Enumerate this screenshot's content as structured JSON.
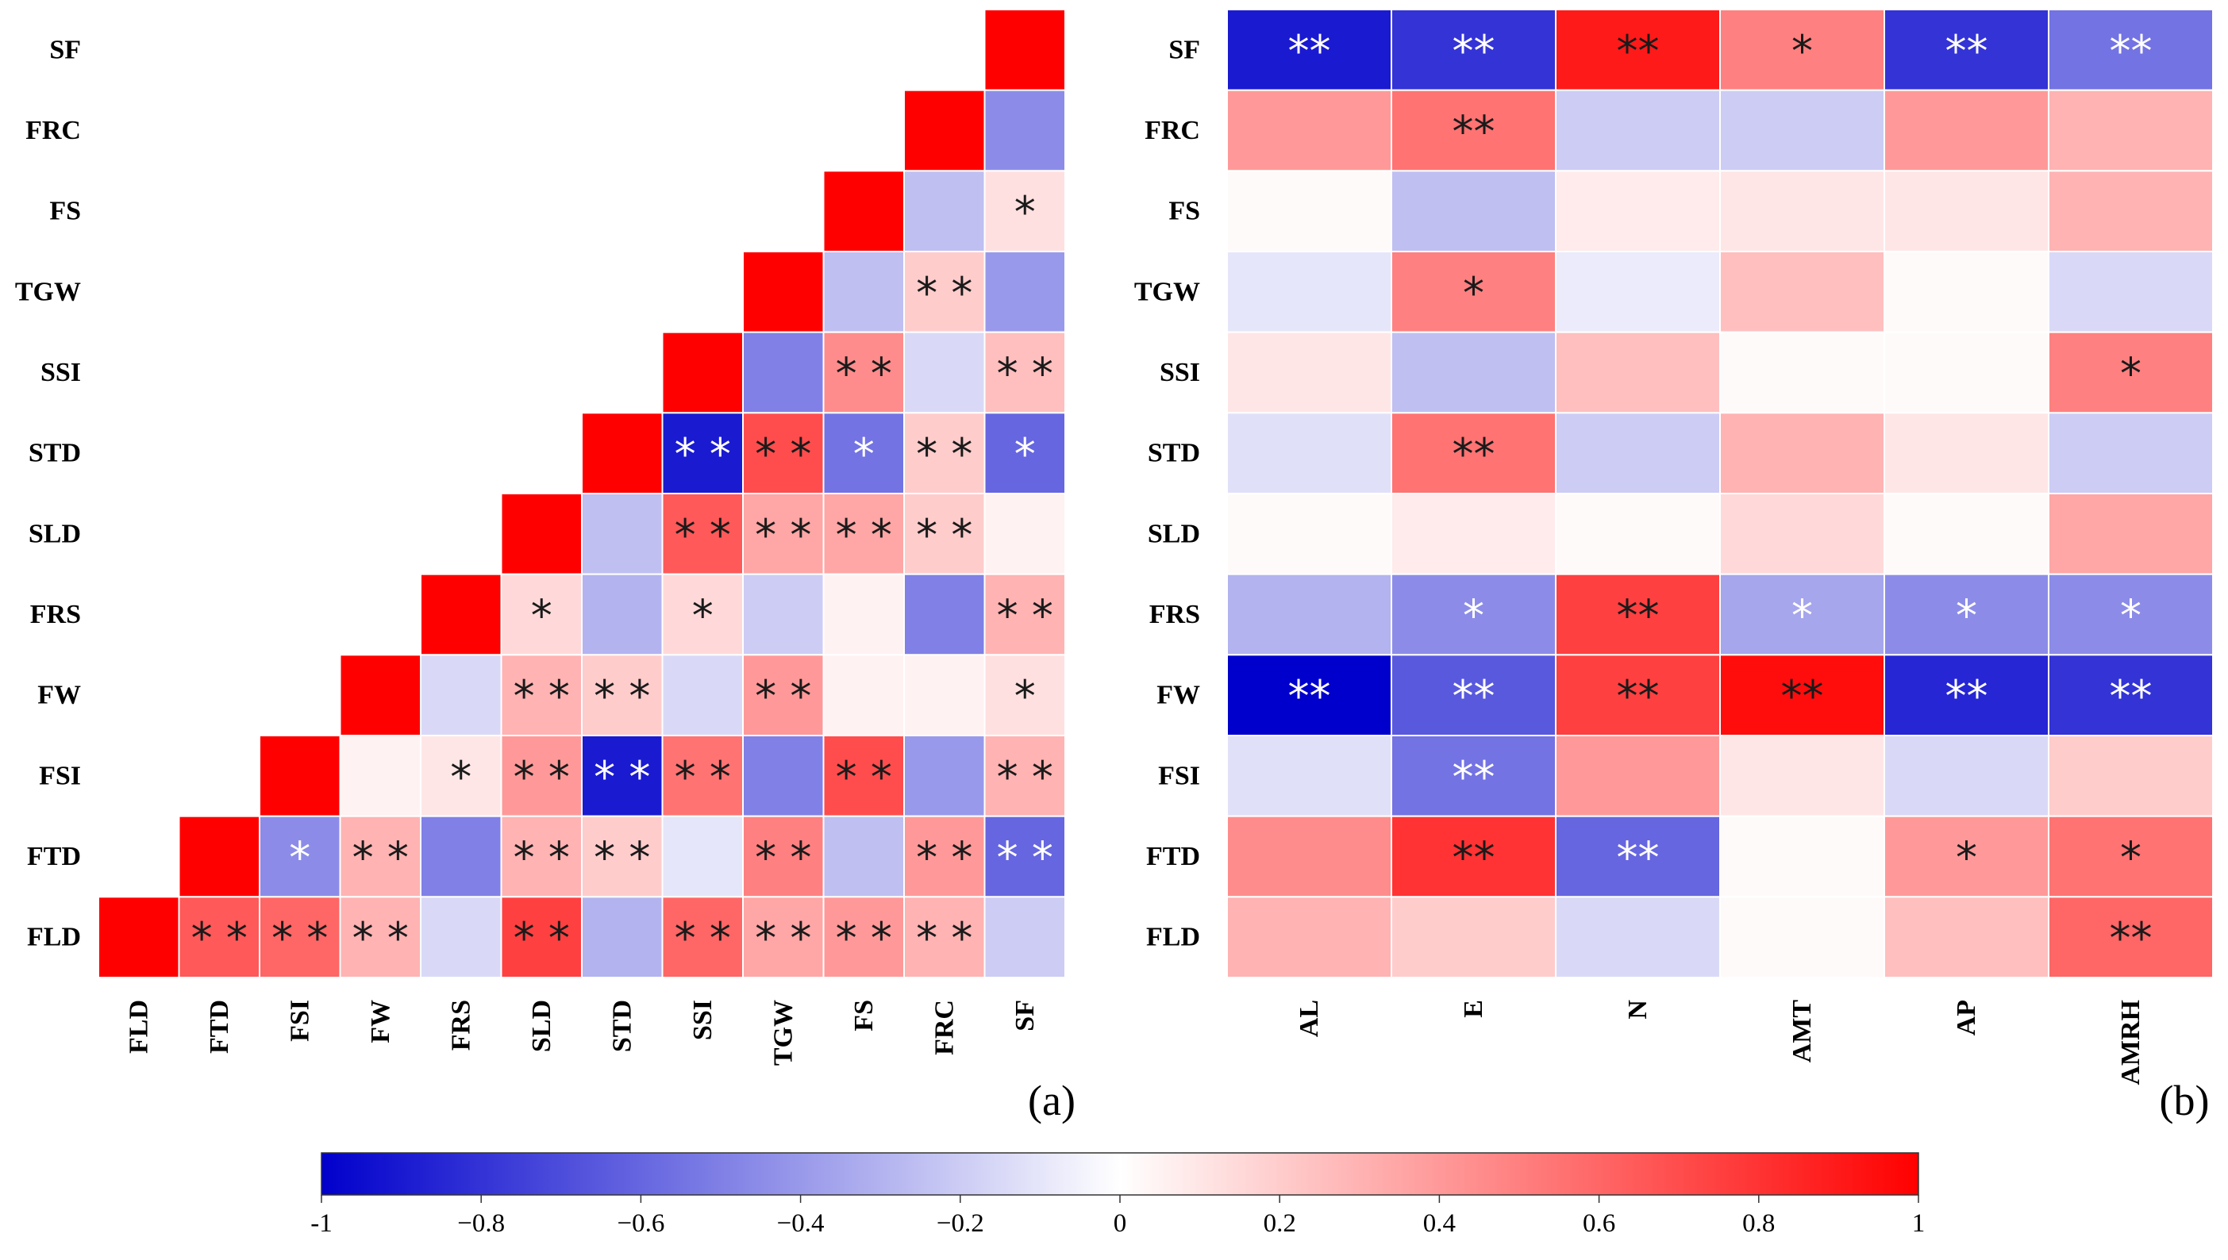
{
  "colors": {
    "negative": "#0000cc",
    "neutral": "#ffffff",
    "positive": "#ff0000",
    "star_dark": "#1a1a1a",
    "star_light": "#ffffff"
  },
  "chart_data": [
    {
      "type": "heatmap",
      "panel": "(a)",
      "title": "",
      "shape": "lower-triangle",
      "rows": [
        "SF",
        "FRC",
        "FS",
        "TGW",
        "SSI",
        "STD",
        "SLD",
        "FRS",
        "FW",
        "FSI",
        "FTD",
        "FLD"
      ],
      "cols": [
        "FLD",
        "FTD",
        "FSI",
        "FW",
        "FRS",
        "SLD",
        "STD",
        "SSI",
        "TGW",
        "FS",
        "FRC",
        "SF"
      ],
      "values": [
        [
          null,
          null,
          null,
          null,
          null,
          null,
          null,
          null,
          null,
          null,
          null,
          1.0
        ],
        [
          null,
          null,
          null,
          null,
          null,
          null,
          null,
          null,
          null,
          null,
          1.0,
          -0.45
        ],
        [
          null,
          null,
          null,
          null,
          null,
          null,
          null,
          null,
          null,
          1.0,
          -0.25,
          0.12
        ],
        [
          null,
          null,
          null,
          null,
          null,
          null,
          null,
          null,
          1.0,
          -0.25,
          0.2,
          -0.4
        ],
        [
          null,
          null,
          null,
          null,
          null,
          null,
          null,
          1.0,
          -0.5,
          0.45,
          -0.15,
          0.25
        ],
        [
          null,
          null,
          null,
          null,
          null,
          null,
          1.0,
          -0.9,
          0.7,
          -0.55,
          0.2,
          -0.6
        ],
        [
          null,
          null,
          null,
          null,
          null,
          1.0,
          -0.25,
          0.65,
          0.35,
          0.35,
          0.2,
          0.05
        ],
        [
          null,
          null,
          null,
          null,
          1.0,
          0.15,
          -0.3,
          0.15,
          -0.2,
          0.05,
          -0.5,
          0.3
        ],
        [
          null,
          null,
          null,
          1.0,
          -0.15,
          0.3,
          0.2,
          -0.15,
          0.4,
          0.05,
          0.05,
          0.12
        ],
        [
          null,
          null,
          1.0,
          0.05,
          0.1,
          0.4,
          -0.9,
          0.55,
          -0.5,
          0.7,
          -0.4,
          0.3
        ],
        [
          null,
          1.0,
          -0.45,
          0.3,
          -0.5,
          0.3,
          0.2,
          -0.1,
          0.5,
          -0.25,
          0.4,
          -0.6
        ],
        [
          1.0,
          0.65,
          0.6,
          0.3,
          -0.15,
          0.75,
          -0.3,
          0.6,
          0.35,
          0.4,
          0.3,
          -0.2
        ]
      ],
      "significance": [
        [
          "",
          "",
          "",
          "",
          "",
          "",
          "",
          "",
          "",
          "",
          "",
          ""
        ],
        [
          "",
          "",
          "",
          "",
          "",
          "",
          "",
          "",
          "",
          "",
          "",
          ""
        ],
        [
          "",
          "",
          "",
          "",
          "",
          "",
          "",
          "",
          "",
          "",
          "",
          "*"
        ],
        [
          "",
          "",
          "",
          "",
          "",
          "",
          "",
          "",
          "",
          "",
          "* *",
          ""
        ],
        [
          "",
          "",
          "",
          "",
          "",
          "",
          "",
          "",
          "",
          "* *",
          "",
          "* *"
        ],
        [
          "",
          "",
          "",
          "",
          "",
          "",
          "",
          "* *",
          "* *",
          "*",
          "* *",
          "*"
        ],
        [
          "",
          "",
          "",
          "",
          "",
          "",
          "",
          "* *",
          "* *",
          "* *",
          "* *",
          ""
        ],
        [
          "",
          "",
          "",
          "",
          "",
          "*",
          "",
          "*",
          "",
          "",
          "",
          "* *"
        ],
        [
          "",
          "",
          "",
          "",
          "",
          "* *",
          "* *",
          "",
          "* *",
          "",
          "",
          "*"
        ],
        [
          "",
          "",
          "",
          "",
          "*",
          "* *",
          "* *",
          "* *",
          "",
          "* *",
          "",
          "* *"
        ],
        [
          "",
          "",
          "*",
          "* *",
          "",
          "* *",
          "* *",
          "",
          "* *",
          "",
          "* *",
          "* *"
        ],
        [
          "",
          "* *",
          "* *",
          "* *",
          "",
          "* *",
          "",
          "* *",
          "* *",
          "* *",
          "* *",
          ""
        ]
      ]
    },
    {
      "type": "heatmap",
      "panel": "(b)",
      "title": "",
      "rows": [
        "SF",
        "FRC",
        "FS",
        "TGW",
        "SSI",
        "STD",
        "SLD",
        "FRS",
        "FW",
        "FSI",
        "FTD",
        "FLD"
      ],
      "cols": [
        "AL",
        "E",
        "N",
        "AMT",
        "AP",
        "AMRH"
      ],
      "values": [
        [
          -0.9,
          -0.8,
          0.9,
          0.5,
          -0.8,
          -0.55
        ],
        [
          0.4,
          0.55,
          -0.2,
          -0.2,
          0.4,
          0.3
        ],
        [
          0.02,
          -0.25,
          0.08,
          0.1,
          0.1,
          0.3
        ],
        [
          -0.1,
          0.5,
          -0.08,
          0.25,
          0.02,
          -0.15
        ],
        [
          0.1,
          -0.25,
          0.25,
          0.02,
          0.02,
          0.5
        ],
        [
          -0.12,
          0.55,
          -0.2,
          0.3,
          0.1,
          -0.2
        ],
        [
          0.02,
          0.08,
          0.02,
          0.15,
          0.02,
          0.35
        ],
        [
          -0.3,
          -0.45,
          0.75,
          -0.35,
          -0.45,
          -0.45
        ],
        [
          -1.0,
          -0.65,
          0.75,
          0.95,
          -0.85,
          -0.8
        ],
        [
          -0.12,
          -0.55,
          0.4,
          0.1,
          -0.15,
          0.2
        ],
        [
          0.45,
          0.8,
          -0.6,
          0.02,
          0.4,
          0.55
        ],
        [
          0.3,
          0.2,
          -0.15,
          0.02,
          0.25,
          0.6
        ]
      ],
      "significance": [
        [
          "**",
          "**",
          "**",
          "*",
          "**",
          "**"
        ],
        [
          "",
          "**",
          "",
          "",
          "",
          ""
        ],
        [
          "",
          "",
          "",
          "",
          "",
          ""
        ],
        [
          "",
          "*",
          "",
          "",
          "",
          ""
        ],
        [
          "",
          "",
          "",
          "",
          "",
          "*"
        ],
        [
          "",
          "**",
          "",
          "",
          "",
          ""
        ],
        [
          "",
          "",
          "",
          "",
          "",
          ""
        ],
        [
          "",
          "*",
          "**",
          "*",
          "*",
          "*"
        ],
        [
          "**",
          "**",
          "**",
          "**",
          "**",
          "**"
        ],
        [
          "",
          "**",
          "",
          "",
          "",
          ""
        ],
        [
          "",
          "**",
          "**",
          "",
          "*",
          "*"
        ],
        [
          "",
          "",
          "",
          "",
          "",
          "**"
        ]
      ]
    }
  ],
  "colorbar": {
    "range": [
      -1,
      1
    ],
    "ticks": [
      "-1",
      "−0.8",
      "−0.6",
      "−0.4",
      "−0.2",
      "0",
      "0.2",
      "0.4",
      "0.6",
      "0.8",
      "1"
    ],
    "tick_values": [
      -1,
      -0.8,
      -0.6,
      -0.4,
      -0.2,
      0,
      0.2,
      0.4,
      0.6,
      0.8,
      1
    ]
  }
}
